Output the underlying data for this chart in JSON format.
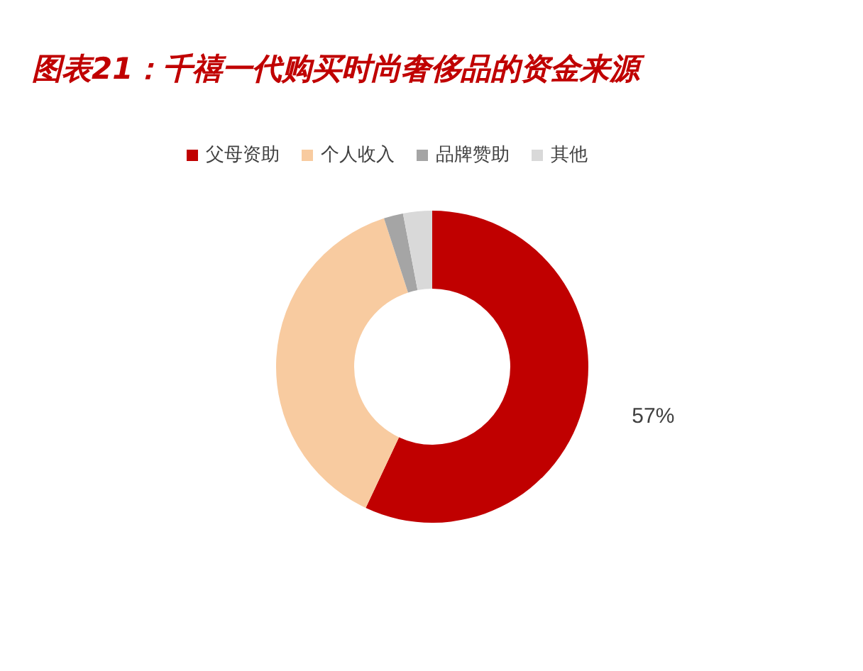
{
  "chart_data": {
    "type": "donut",
    "title": "图表21：千禧一代购买时尚奢侈品的资金来源",
    "categories": [
      "父母资助",
      "个人收入",
      "品牌赞助",
      "其他"
    ],
    "values": [
      57,
      38,
      2,
      3
    ],
    "colors": [
      "#c00000",
      "#f8cba0",
      "#a5a5a5",
      "#d9d9d9"
    ],
    "value_labels": [
      "57%",
      null,
      null,
      null
    ],
    "legend": "top"
  }
}
